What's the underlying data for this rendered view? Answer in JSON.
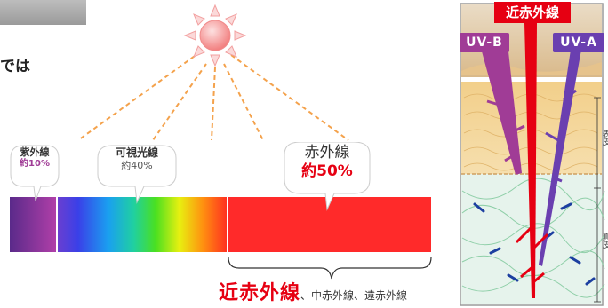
{
  "intro": {
    "text_fragment": "では"
  },
  "sun": {
    "icon": "sun-icon",
    "color": "#f08080"
  },
  "spectrum": {
    "uv": {
      "label": "紫外線",
      "percent": "約10%"
    },
    "visible": {
      "label": "可視光線",
      "percent": "約40%"
    },
    "ir": {
      "label": "赤外線",
      "percent": "約50%"
    }
  },
  "caption": {
    "primary": "近赤外線",
    "secondary": "、中赤外線、遠赤外線"
  },
  "skin_diagram": {
    "title": "近赤外線",
    "uvb_label": "UV-B",
    "uva_label": "UV-A",
    "epidermis_label": "表皮",
    "dermis_label": "真皮",
    "colors": {
      "uvb": "#a03c96",
      "uva": "#6a3fb0",
      "ir": "#e60012"
    }
  }
}
